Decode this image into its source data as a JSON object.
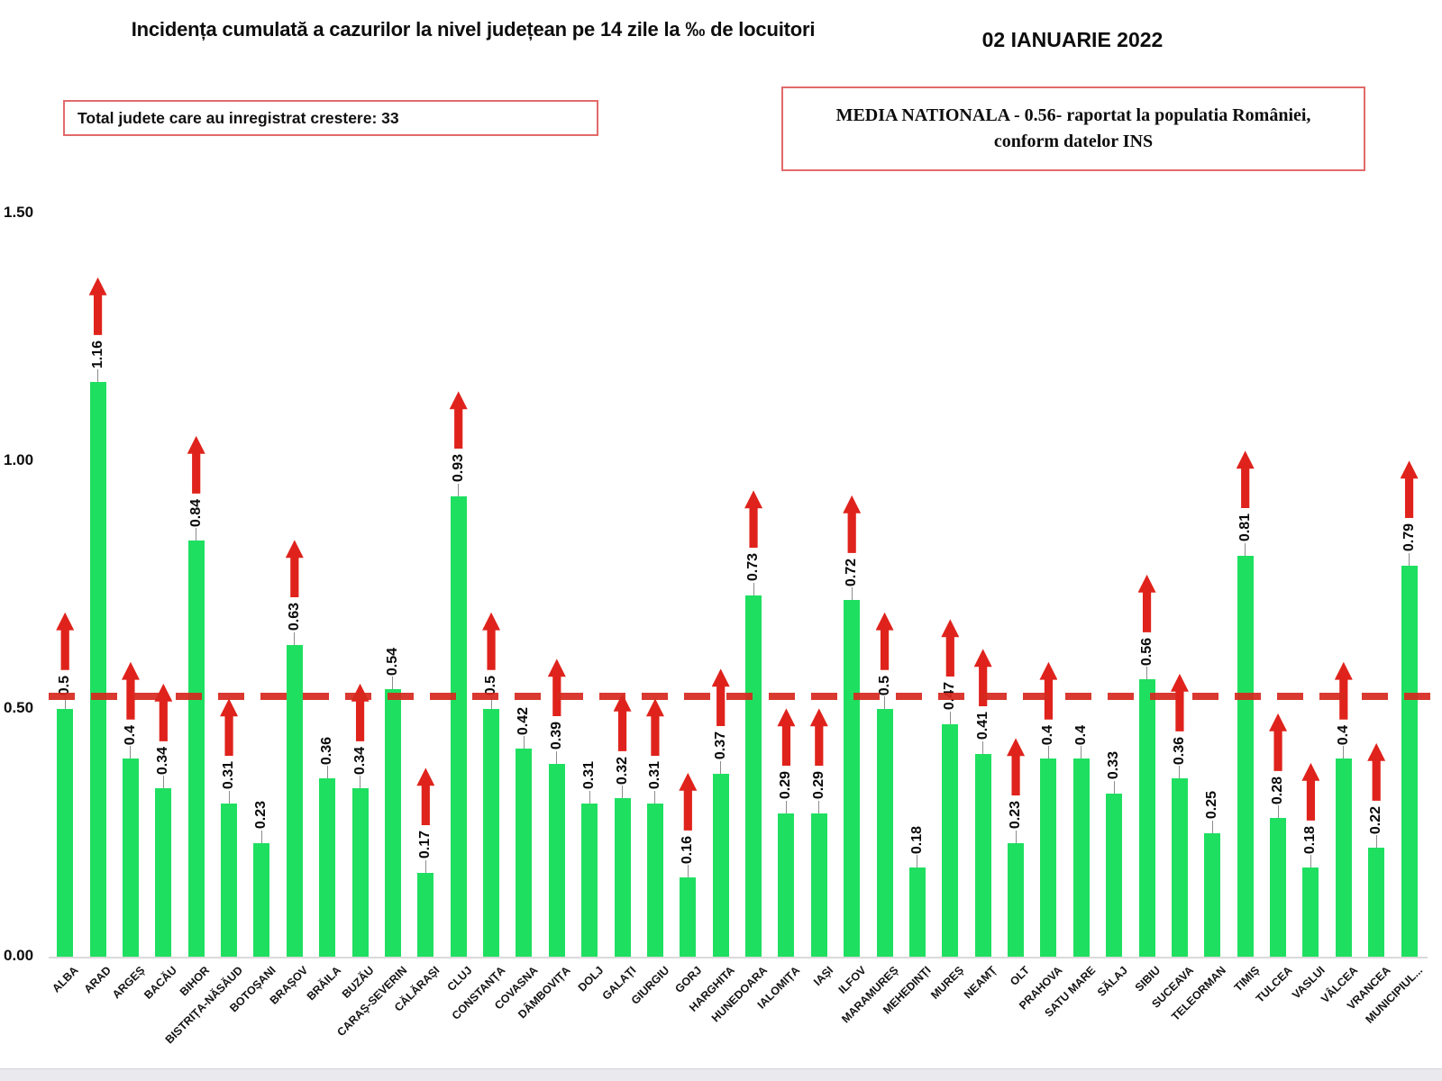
{
  "title": "Incidența cumulată a cazurilor la nivel județean pe 14 zile la ‰ de locuitori",
  "date": "02 IANUARIE 2022",
  "growth_box_label": "Total judete care au inregistrat crestere: 33",
  "national_box": {
    "line1": "MEDIA NATIONALA - 0.56-  raportat la populatia României,",
    "line2": "conform datelor INS"
  },
  "colors": {
    "bar_green": "#1fdf61",
    "arrow_red": "#df231c",
    "reference_line_red": "#d6281e",
    "box_border_red": "#e26a6a"
  },
  "chart_data": {
    "type": "bar",
    "title": "Incidența cumulată a cazurilor la nivel județean pe 14 zile la ‰ de locuitori",
    "xlabel": "",
    "ylabel": "",
    "ylim": [
      0,
      1.5
    ],
    "ytick_labels": [
      "1.50",
      "1.00",
      "0.50",
      "0.00"
    ],
    "ytick_values": [
      1.5,
      1.0,
      0.5,
      0.0
    ],
    "grid": false,
    "legend": false,
    "national_average": 0.56,
    "reference_line_value": 0.525,
    "counties_with_increase_total": 33,
    "categories": [
      "ALBA",
      "ARAD",
      "ARGEȘ",
      "BACĂU",
      "BIHOR",
      "BISTRIȚA-NĂSĂUD",
      "BOTOȘANI",
      "BRAȘOV",
      "BRĂILA",
      "BUZĂU",
      "CARAȘ-SEVERIN",
      "CĂLĂRAȘI",
      "CLUJ",
      "CONSTANȚA",
      "COVASNA",
      "DÂMBOVIȚA",
      "DOLJ",
      "GALAȚI",
      "GIURGIU",
      "GORJ",
      "HARGHITA",
      "HUNEDOARA",
      "IALOMIȚA",
      "IAȘI",
      "ILFOV",
      "MARAMUREȘ",
      "MEHEDINȚI",
      "MUREȘ",
      "NEAMȚ",
      "OLT",
      "PRAHOVA",
      "SATU MARE",
      "SĂLAJ",
      "SIBIU",
      "SUCEAVA",
      "TELEORMAN",
      "TIMIȘ",
      "TULCEA",
      "VASLUI",
      "VÂLCEA",
      "VRANCEA",
      "MUNICIPIUL..."
    ],
    "values": [
      0.5,
      1.16,
      0.4,
      0.34,
      0.84,
      0.31,
      0.23,
      0.63,
      0.36,
      0.34,
      0.54,
      0.17,
      0.93,
      0.5,
      0.42,
      0.39,
      0.31,
      0.32,
      0.31,
      0.16,
      0.37,
      0.73,
      0.29,
      0.29,
      0.72,
      0.5,
      0.18,
      0.47,
      0.41,
      0.23,
      0.4,
      0.4,
      0.33,
      0.56,
      0.36,
      0.25,
      0.81,
      0.28,
      0.18,
      0.4,
      0.22,
      0.79
    ],
    "value_labels": [
      "0.5",
      "1.16",
      "0.4",
      "0.34",
      "0.84",
      "0.31",
      "0.23",
      "0.63",
      "0.36",
      "0.34",
      "0.54",
      "0.17",
      "0.93",
      "0.5",
      "0.42",
      "0.39",
      "0.31",
      "0.32",
      "0.31",
      "0.16",
      "0.37",
      "0.73",
      "0.29",
      "0.29",
      "0.72",
      "0.5",
      "0.18",
      "0.47",
      "0.41",
      "0.23",
      "0.4",
      "0.4",
      "0.33",
      "0.56",
      "0.36",
      "0.25",
      "0.81",
      "0.28",
      "0.18",
      "0.4",
      "0.22",
      "0.79"
    ],
    "increase": [
      true,
      true,
      true,
      true,
      true,
      true,
      false,
      true,
      false,
      true,
      false,
      true,
      true,
      true,
      false,
      true,
      false,
      true,
      true,
      true,
      true,
      true,
      true,
      true,
      true,
      true,
      false,
      true,
      true,
      true,
      true,
      false,
      false,
      true,
      true,
      false,
      true,
      true,
      true,
      true,
      true,
      true
    ]
  }
}
